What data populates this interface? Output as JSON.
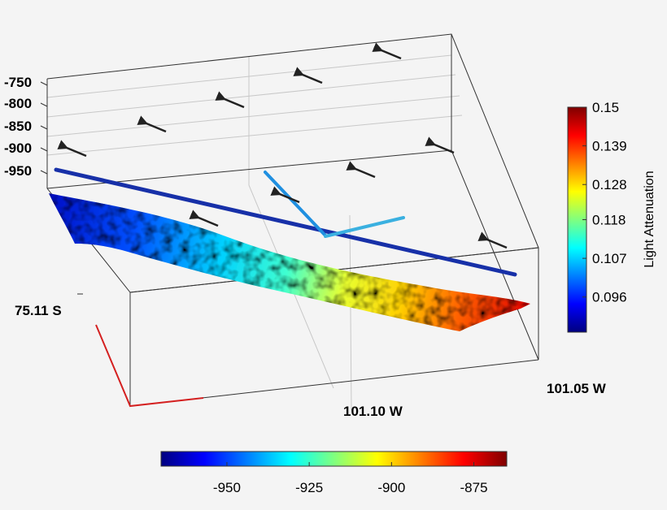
{
  "chart_data": {
    "type": "3d-scatter-surface",
    "title": "",
    "axes": {
      "z_tick_labels": [
        "-750",
        "-800",
        "-850",
        "-900",
        "-950"
      ],
      "y_label": "75.11 S",
      "x_label_mid": "101.10 W",
      "x_label_right": "101.05 W"
    },
    "seafloor_colorbar": {
      "title": "",
      "range": [
        -970,
        -865
      ],
      "ticks": [
        "-950",
        "-925",
        "-900",
        "-875"
      ],
      "tick_values": [
        -950,
        -925,
        -900,
        -875
      ]
    },
    "attenuation_colorbar": {
      "title": "Light Attenuation",
      "range": [
        0.086,
        0.15
      ],
      "ticks": [
        "0.15",
        "0.139",
        "0.128",
        "0.118",
        "0.107",
        "0.096"
      ],
      "tick_values": [
        0.15,
        0.139,
        0.128,
        0.118,
        0.107,
        0.096
      ]
    },
    "current_vectors": {
      "count": 10,
      "color": "#222222"
    },
    "tracks": [
      {
        "name": "",
        "color": "#1730a8"
      },
      {
        "name": "",
        "color": "#1f8fe0"
      },
      {
        "name": "",
        "color": "#3ab0e0"
      }
    ],
    "colors": {
      "axis_red": "#d42020",
      "box_line": "#333333",
      "grid": "#c8c8c8"
    }
  }
}
